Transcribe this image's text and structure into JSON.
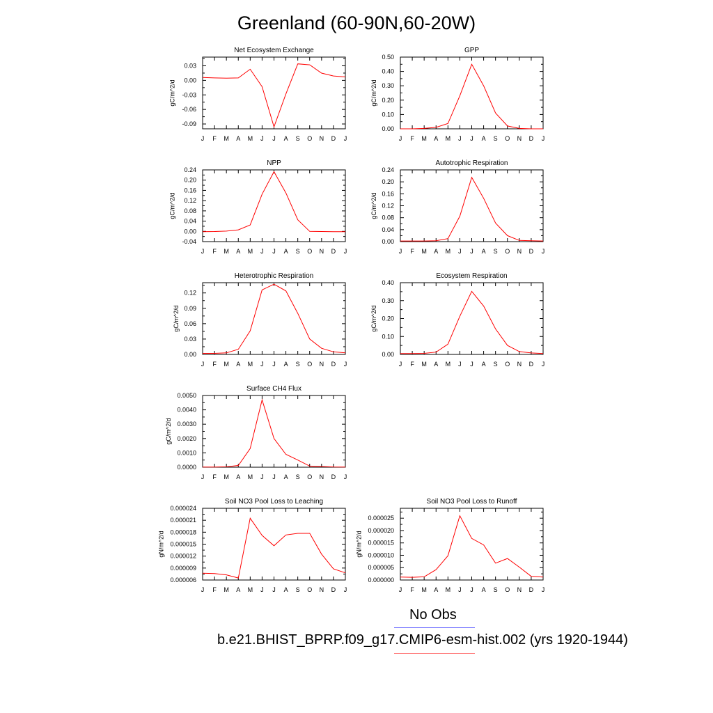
{
  "title": "Greenland (60-90N,60-20W)",
  "month_labels": [
    "J",
    "F",
    "M",
    "A",
    "M",
    "J",
    "J",
    "A",
    "S",
    "O",
    "N",
    "D",
    "J"
  ],
  "colors": {
    "model": "#ff0000",
    "obs": "#6666ff"
  },
  "legend": {
    "obs_label": "No Obs",
    "model_label": "b.e21.BHIST_BPRP.f09_g17.CMIP6-esm-hist.002 (yrs 1920-1944)"
  },
  "chart_data": [
    {
      "type": "line",
      "title": "Net Ecosystem Exchange",
      "ylabel": "gC/m^2/d",
      "ylim": [
        -0.1,
        0.048
      ],
      "ticks": [
        -0.09,
        -0.06,
        -0.03,
        0.0,
        0.03
      ],
      "tick_labels": [
        "-0.09",
        "-0.06",
        "-0.03",
        "0.00",
        "0.03"
      ],
      "x": [
        0,
        1,
        2,
        3,
        4,
        5,
        6,
        7,
        8,
        9,
        10,
        11,
        12
      ],
      "values": [
        0.006,
        0.005,
        0.0045,
        0.005,
        0.023,
        -0.013,
        -0.096,
        -0.028,
        0.034,
        0.032,
        0.015,
        0.009,
        0.007
      ]
    },
    {
      "type": "line",
      "title": "GPP",
      "ylabel": "gC/m^2/d",
      "ylim": [
        0.0,
        0.5
      ],
      "ticks": [
        0.0,
        0.1,
        0.2,
        0.3,
        0.4,
        0.5
      ],
      "tick_labels": [
        "0.00",
        "0.10",
        "0.20",
        "0.30",
        "0.40",
        "0.50"
      ],
      "x": [
        0,
        1,
        2,
        3,
        4,
        5,
        6,
        7,
        8,
        9,
        10,
        11,
        12
      ],
      "values": [
        0.0,
        0.0,
        0.003,
        0.01,
        0.037,
        0.23,
        0.45,
        0.3,
        0.11,
        0.02,
        0.003,
        0.0,
        0.0
      ]
    },
    {
      "type": "line",
      "title": "NPP",
      "ylabel": "gC/m^2/d",
      "ylim": [
        -0.04,
        0.24
      ],
      "ticks": [
        -0.04,
        0.0,
        0.04,
        0.08,
        0.12,
        0.16,
        0.2,
        0.24
      ],
      "tick_labels": [
        "-0.04",
        "0.00",
        "0.04",
        "0.08",
        "0.12",
        "0.16",
        "0.20",
        "0.24"
      ],
      "x": [
        0,
        1,
        2,
        3,
        4,
        5,
        6,
        7,
        8,
        9,
        10,
        11,
        12
      ],
      "values": [
        -0.001,
        -0.0005,
        0.001,
        0.006,
        0.025,
        0.145,
        0.233,
        0.15,
        0.045,
        0.0,
        -0.0005,
        -0.001,
        -0.001
      ]
    },
    {
      "type": "line",
      "title": "Autotrophic Respiration",
      "ylabel": "gC/m^2/d",
      "ylim": [
        0.0,
        0.24
      ],
      "ticks": [
        0.0,
        0.04,
        0.08,
        0.12,
        0.16,
        0.2,
        0.24
      ],
      "tick_labels": [
        "0.00",
        "0.04",
        "0.08",
        "0.12",
        "0.16",
        "0.20",
        "0.24"
      ],
      "x": [
        0,
        1,
        2,
        3,
        4,
        5,
        6,
        7,
        8,
        9,
        10,
        11,
        12
      ],
      "values": [
        0.002,
        0.002,
        0.002,
        0.003,
        0.01,
        0.085,
        0.215,
        0.145,
        0.062,
        0.02,
        0.004,
        0.003,
        0.002
      ]
    },
    {
      "type": "line",
      "title": "Heterotrophic Respiration",
      "ylabel": "gC/m^2/d",
      "ylim": [
        0.0,
        0.14
      ],
      "ticks": [
        0.0,
        0.03,
        0.06,
        0.09,
        0.12
      ],
      "tick_labels": [
        "0.00",
        "0.03",
        "0.06",
        "0.09",
        "0.12"
      ],
      "x": [
        0,
        1,
        2,
        3,
        4,
        5,
        6,
        7,
        8,
        9,
        10,
        11,
        12
      ],
      "values": [
        0.002,
        0.002,
        0.003,
        0.01,
        0.046,
        0.126,
        0.137,
        0.124,
        0.08,
        0.03,
        0.012,
        0.005,
        0.003
      ]
    },
    {
      "type": "line",
      "title": "Ecosystem Respiration",
      "ylabel": "gC/m^2/d",
      "ylim": [
        0.0,
        0.4
      ],
      "ticks": [
        0.0,
        0.1,
        0.2,
        0.3,
        0.4
      ],
      "tick_labels": [
        "0.00",
        "0.10",
        "0.20",
        "0.30",
        "0.40"
      ],
      "x": [
        0,
        1,
        2,
        3,
        4,
        5,
        6,
        7,
        8,
        9,
        10,
        11,
        12
      ],
      "values": [
        0.005,
        0.005,
        0.006,
        0.013,
        0.057,
        0.213,
        0.352,
        0.27,
        0.142,
        0.05,
        0.016,
        0.008,
        0.005
      ]
    },
    {
      "type": "line",
      "title": "Surface CH4 Flux",
      "ylabel": "gC/m^2/d",
      "ylim": [
        0.0,
        0.005
      ],
      "ticks": [
        0.0,
        0.001,
        0.002,
        0.003,
        0.004,
        0.005
      ],
      "tick_labels": [
        "0.0000",
        "0.0010",
        "0.0020",
        "0.0030",
        "0.0040",
        "0.0050"
      ],
      "x": [
        0,
        1,
        2,
        3,
        4,
        5,
        6,
        7,
        8,
        9,
        10,
        11,
        12
      ],
      "values": [
        1e-05,
        1e-05,
        3e-05,
        0.00012,
        0.0013,
        0.0047,
        0.002,
        0.0009,
        0.0005,
        8e-05,
        5e-05,
        2e-05,
        1e-05
      ]
    },
    {
      "type": "line",
      "title": "Soil NO3 Pool Loss to Leaching",
      "ylabel": "gN/m^2/d",
      "ylim": [
        6e-06,
        2.4e-05
      ],
      "ticks": [
        6e-06,
        9e-06,
        1.2e-05,
        1.5e-05,
        1.8e-05,
        2.1e-05,
        2.4e-05
      ],
      "tick_labels": [
        "0.000006",
        "0.000009",
        "0.000012",
        "0.000015",
        "0.000018",
        "0.000021",
        "0.000024"
      ],
      "x": [
        0,
        1,
        2,
        3,
        4,
        5,
        6,
        7,
        8,
        9,
        10,
        11,
        12
      ],
      "values": [
        7.7e-06,
        7.6e-06,
        7.3e-06,
        6.5e-06,
        2.15e-05,
        1.72e-05,
        1.46e-05,
        1.73e-05,
        1.77e-05,
        1.77e-05,
        1.25e-05,
        8.8e-06,
        7.8e-06
      ]
    },
    {
      "type": "line",
      "title": "Soil NO3 Pool Loss to Runoff",
      "ylabel": "gN/m^2/d",
      "ylim": [
        0.0,
        2.9e-05
      ],
      "ticks": [
        0.0,
        5e-06,
        1e-05,
        1.5e-05,
        2e-05,
        2.5e-05
      ],
      "tick_labels": [
        "0.000000",
        "0.000005",
        "0.000010",
        "0.000015",
        "0.000020",
        "0.000025"
      ],
      "x": [
        0,
        1,
        2,
        3,
        4,
        5,
        6,
        7,
        8,
        9,
        10,
        11,
        12
      ],
      "values": [
        1.2e-06,
        1.1e-06,
        1.3e-06,
        4.2e-06,
        9.8e-06,
        2.6e-05,
        1.68e-05,
        1.42e-05,
        6.8e-06,
        8.7e-06,
        5.2e-06,
        1.5e-06,
        1.2e-06
      ]
    }
  ]
}
